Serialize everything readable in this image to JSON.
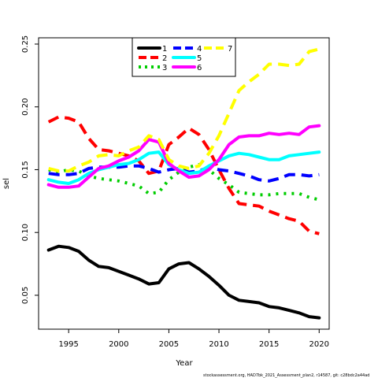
{
  "chart_data": {
    "type": "line",
    "xlabel": "Year",
    "ylabel": "sel",
    "xlim": [
      1992,
      2021
    ],
    "ylim": [
      0.023,
      0.255
    ],
    "x_ticks": [
      1995,
      2000,
      2005,
      2010,
      2015,
      2020
    ],
    "y_ticks": [
      0.05,
      0.1,
      0.15,
      0.2,
      0.25
    ],
    "x_tick_labels": [
      "1995",
      "2000",
      "2005",
      "2010",
      "2015",
      "2020"
    ],
    "y_tick_labels": [
      "0.05",
      "0.10",
      "0.15",
      "0.20",
      "0.25"
    ],
    "grid": false,
    "legend_position": "top-center",
    "x": [
      1993,
      1994,
      1995,
      1996,
      1997,
      1998,
      1999,
      2000,
      2001,
      2002,
      2003,
      2004,
      2005,
      2006,
      2007,
      2008,
      2009,
      2010,
      2011,
      2012,
      2013,
      2014,
      2015,
      2016,
      2017,
      2018,
      2019,
      2020
    ],
    "series": [
      {
        "name": "1",
        "color": "#000000",
        "dash": "solid",
        "values": [
          0.086,
          0.089,
          0.088,
          0.085,
          0.078,
          0.073,
          0.072,
          0.069,
          0.066,
          0.063,
          0.059,
          0.06,
          0.071,
          0.075,
          0.076,
          0.071,
          0.065,
          0.058,
          0.05,
          0.046,
          0.045,
          0.044,
          0.041,
          0.04,
          0.038,
          0.036,
          0.033,
          0.032
        ]
      },
      {
        "name": "2",
        "color": "#ff0000",
        "dash": "dash",
        "values": [
          0.188,
          0.192,
          0.191,
          0.188,
          0.175,
          0.166,
          0.165,
          0.163,
          0.161,
          0.157,
          0.147,
          0.149,
          0.17,
          0.176,
          0.183,
          0.178,
          0.166,
          0.15,
          0.135,
          0.123,
          0.122,
          0.121,
          0.117,
          0.114,
          0.111,
          0.109,
          0.101,
          0.099
        ]
      },
      {
        "name": "3",
        "color": "#00cd00",
        "dash": "dot",
        "values": [
          0.15,
          0.148,
          0.15,
          0.149,
          0.145,
          0.143,
          0.142,
          0.141,
          0.139,
          0.137,
          0.131,
          0.132,
          0.142,
          0.148,
          0.152,
          0.154,
          0.15,
          0.143,
          0.138,
          0.132,
          0.131,
          0.13,
          0.13,
          0.131,
          0.131,
          0.131,
          0.128,
          0.126
        ]
      },
      {
        "name": "4",
        "color": "#0000ff",
        "dash": "dash",
        "values": [
          0.147,
          0.146,
          0.146,
          0.147,
          0.151,
          0.152,
          0.152,
          0.152,
          0.153,
          0.153,
          0.151,
          0.148,
          0.15,
          0.151,
          0.148,
          0.149,
          0.152,
          0.15,
          0.149,
          0.147,
          0.145,
          0.142,
          0.141,
          0.143,
          0.146,
          0.146,
          0.145,
          0.146
        ]
      },
      {
        "name": "5",
        "color": "#00ffff",
        "dash": "solid",
        "values": [
          0.142,
          0.14,
          0.139,
          0.142,
          0.147,
          0.15,
          0.152,
          0.154,
          0.155,
          0.158,
          0.163,
          0.164,
          0.154,
          0.15,
          0.147,
          0.148,
          0.153,
          0.157,
          0.161,
          0.163,
          0.162,
          0.16,
          0.158,
          0.158,
          0.161,
          0.162,
          0.163,
          0.164
        ]
      },
      {
        "name": "6",
        "color": "#ff00ff",
        "dash": "solid",
        "values": [
          0.138,
          0.136,
          0.136,
          0.137,
          0.144,
          0.151,
          0.153,
          0.157,
          0.16,
          0.165,
          0.174,
          0.172,
          0.155,
          0.149,
          0.144,
          0.145,
          0.15,
          0.158,
          0.17,
          0.176,
          0.177,
          0.177,
          0.179,
          0.178,
          0.179,
          0.178,
          0.184,
          0.185
        ]
      },
      {
        "name": "7",
        "color": "#ffff00",
        "dash": "dash",
        "values": [
          0.151,
          0.149,
          0.149,
          0.153,
          0.156,
          0.161,
          0.162,
          0.161,
          0.165,
          0.168,
          0.177,
          0.174,
          0.158,
          0.153,
          0.151,
          0.153,
          0.163,
          0.177,
          0.195,
          0.213,
          0.22,
          0.226,
          0.234,
          0.234,
          0.233,
          0.234,
          0.244,
          0.246
        ]
      }
    ]
  },
  "footer": {
    "text": "stockassessment.org, HAD7bk_2021_Assessment_plan2, r14587, git: c28bdc2a44ad"
  }
}
